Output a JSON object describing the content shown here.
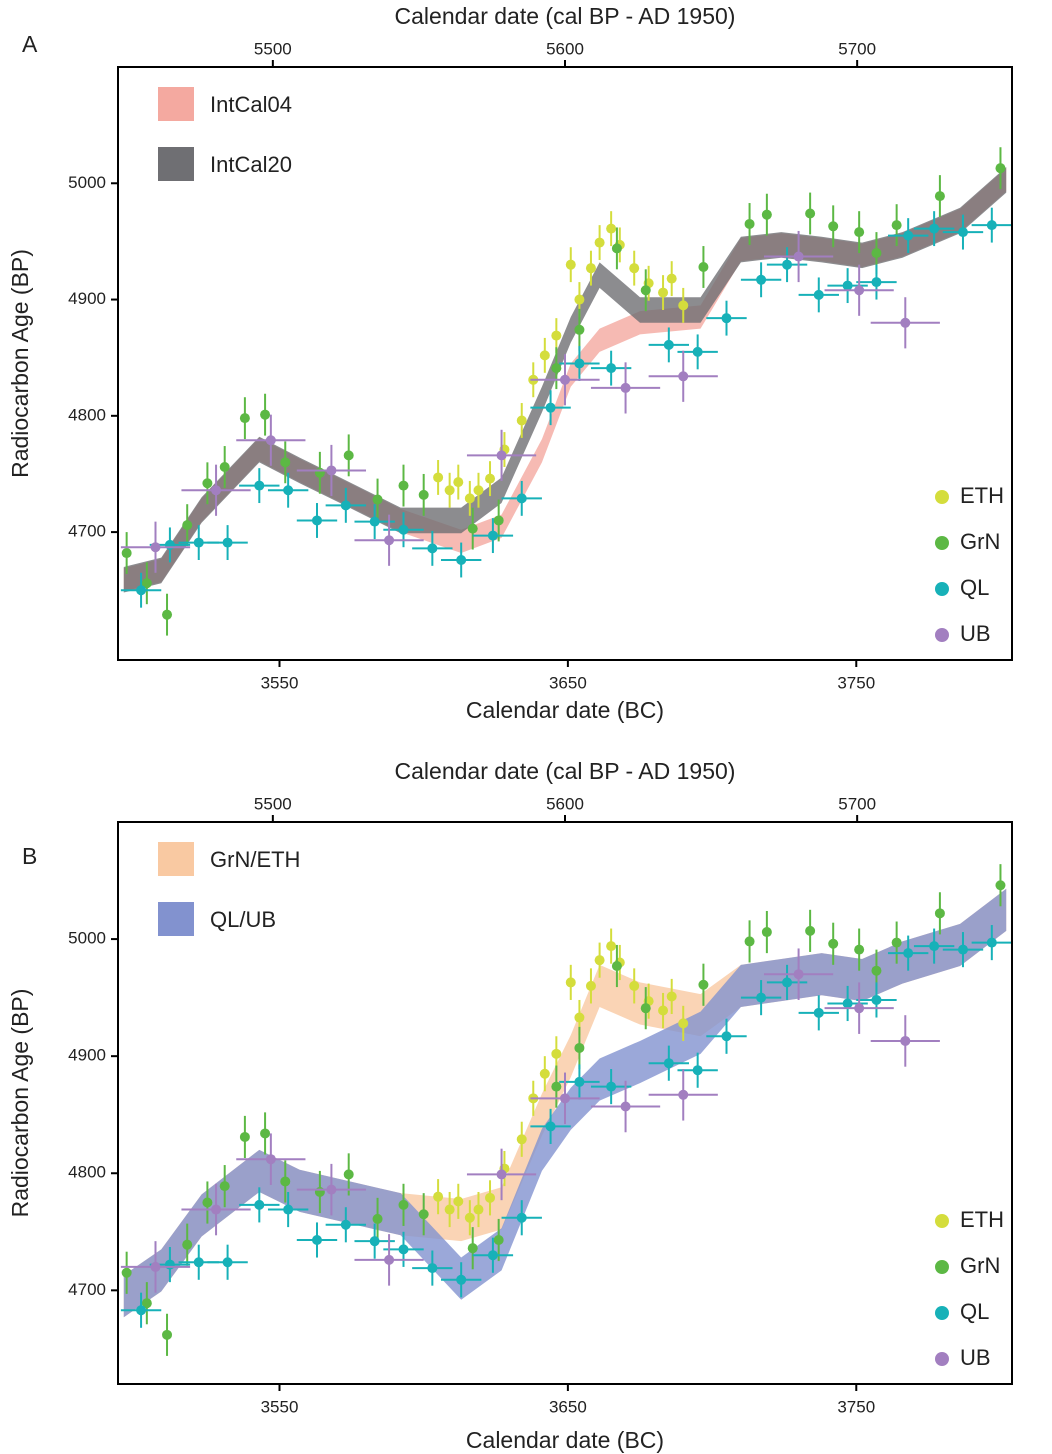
{
  "chart_data": [
    {
      "type": "scatter",
      "panel_label": "A",
      "x2label": "Calendar date (cal BP - AD 1950)",
      "xlabel": "Calendar date (BC)",
      "ylabel": "Radiocarbon Age (BP)",
      "xlim": [
        3494,
        3804
      ],
      "xticks": [
        3550,
        3650,
        3750
      ],
      "x2lim": [
        5447,
        5753
      ],
      "x2ticks": [
        5500,
        5600,
        5700
      ],
      "ylim": [
        4590,
        5100
      ],
      "yticks": [
        4700,
        4800,
        4900,
        5000
      ],
      "band_legend": "upper left",
      "legend": "lower right",
      "bands": [
        {
          "name": "IntCal04",
          "color": "#f4a9a0",
          "x": [
            3496,
            3509,
            3523,
            3543,
            3557,
            3571,
            3592,
            3613,
            3627,
            3641,
            3651,
            3661,
            3675,
            3696,
            3710,
            3724,
            3738,
            3752,
            3766,
            3786,
            3802
          ],
          "low": [
            4649,
            4657,
            4709,
            4761,
            4743,
            4726,
            4700,
            4682,
            4695,
            4760,
            4825,
            4855,
            4870,
            4875,
            4933,
            4937,
            4933,
            4928,
            4937,
            4958,
            4993
          ],
          "high": [
            4669,
            4677,
            4729,
            4781,
            4763,
            4746,
            4720,
            4702,
            4715,
            4780,
            4845,
            4875,
            4890,
            4895,
            4953,
            4957,
            4953,
            4948,
            4957,
            4978,
            5013
          ]
        },
        {
          "name": "IntCal20",
          "color": "#6f6f73",
          "x": [
            3496,
            3509,
            3523,
            3543,
            3557,
            3571,
            3592,
            3613,
            3627,
            3641,
            3651,
            3661,
            3675,
            3696,
            3710,
            3724,
            3738,
            3752,
            3766,
            3786,
            3802
          ],
          "low": [
            4648,
            4656,
            4708,
            4760,
            4742,
            4725,
            4699,
            4699,
            4725,
            4803,
            4863,
            4910,
            4880,
            4880,
            4932,
            4936,
            4932,
            4927,
            4936,
            4957,
            4992
          ],
          "high": [
            4670,
            4678,
            4730,
            4782,
            4764,
            4747,
            4721,
            4721,
            4747,
            4825,
            4885,
            4932,
            4902,
            4902,
            4954,
            4958,
            4954,
            4949,
            4958,
            4979,
            5014
          ]
        }
      ],
      "series": [
        {
          "name": "ETH",
          "color": "#d4dd3c",
          "yerr": 15,
          "x": [
            3605,
            3609,
            3612,
            3616,
            3619,
            3623,
            3628,
            3634,
            3638,
            3642,
            3646,
            3651,
            3654,
            3658,
            3661,
            3665,
            3668,
            3673,
            3678,
            3683,
            3686,
            3690
          ],
          "values": [
            4747,
            4736,
            4743,
            4729,
            4736,
            4746,
            4771,
            4796,
            4831,
            4852,
            4869,
            4930,
            4900,
            4927,
            4949,
            4961,
            4947,
            4927,
            4914,
            4906,
            4918,
            4895
          ]
        },
        {
          "name": "GrN",
          "color": "#5cb844",
          "yerr": 18,
          "x": [
            3497,
            3504,
            3511,
            3518,
            3525,
            3531,
            3538,
            3545,
            3552,
            3564,
            3574,
            3584,
            3593,
            3600,
            3617,
            3626,
            3646,
            3654,
            3667,
            3677,
            3697,
            3713,
            3719,
            3734,
            3742,
            3751,
            3757,
            3764,
            3779,
            3800
          ],
          "values": [
            4682,
            4656,
            4629,
            4706,
            4742,
            4756,
            4798,
            4801,
            4760,
            4751,
            4766,
            4728,
            4740,
            4732,
            4703,
            4710,
            4841,
            4874,
            4944,
            4908,
            4928,
            4965,
            4973,
            4974,
            4963,
            4958,
            4940,
            4964,
            4989,
            5013
          ]
        },
        {
          "name": "QL",
          "color": "#17b1b8",
          "xerr": 7,
          "yerr": 15,
          "x": [
            3502,
            3512,
            3522,
            3532,
            3543,
            3553,
            3563,
            3573,
            3583,
            3593,
            3603,
            3613,
            3624,
            3634,
            3644,
            3654,
            3665,
            3685,
            3695,
            3705,
            3717,
            3726,
            3737,
            3747,
            3757,
            3768,
            3777,
            3787,
            3797
          ],
          "values": [
            4650,
            4689,
            4691,
            4691,
            4740,
            4736,
            4710,
            4723,
            4709,
            4702,
            4686,
            4676,
            4697,
            4729,
            4807,
            4845,
            4841,
            4861,
            4855,
            4884,
            4917,
            4930,
            4904,
            4912,
            4915,
            4955,
            4961,
            4958,
            4964
          ]
        },
        {
          "name": "UB",
          "color": "#a27fc0",
          "xerr": 12,
          "yerr": 22,
          "x": [
            3507,
            3528,
            3547,
            3568,
            3588,
            3627,
            3649,
            3670,
            3690,
            3730,
            3751,
            3767
          ],
          "values": [
            4687,
            4736,
            4779,
            4753,
            4693,
            4766,
            4831,
            4824,
            4834,
            4937,
            4908,
            4880
          ]
        }
      ]
    },
    {
      "type": "scatter",
      "panel_label": "B",
      "x2label": "Calendar date (cal BP - AD 1950)",
      "xlabel": "Calendar date (BC)",
      "ylabel": "Radiocarbon Age (BP)",
      "xlim": [
        3494,
        3804
      ],
      "xticks": [
        3550,
        3650,
        3750
      ],
      "x2lim": [
        5447,
        5753
      ],
      "x2ticks": [
        5500,
        5600,
        5700
      ],
      "ylim": [
        4620,
        5100
      ],
      "yticks": [
        4700,
        4800,
        4900,
        5000
      ],
      "band_legend": "upper left",
      "legend": "lower right",
      "bands": [
        {
          "name": "GrN/ETH",
          "color": "#f9c9a2",
          "x": [
            3496,
            3509,
            3523,
            3543,
            3557,
            3571,
            3592,
            3613,
            3627,
            3641,
            3651,
            3661,
            3675,
            3696,
            3710,
            3724,
            3738,
            3752,
            3766,
            3786,
            3802
          ],
          "low": [
            4677,
            4699,
            4746,
            4784,
            4767,
            4759,
            4747,
            4742,
            4752,
            4832,
            4882,
            4942,
            4927,
            4917,
            4942,
            4947,
            4952,
            4947,
            4962,
            4977,
            5007
          ],
          "high": [
            4713,
            4735,
            4782,
            4820,
            4803,
            4795,
            4783,
            4778,
            4788,
            4868,
            4918,
            4978,
            4963,
            4953,
            4978,
            4983,
            4988,
            4983,
            4998,
            5013,
            5043
          ]
        },
        {
          "name": "QL/UB",
          "color": "#8292cf",
          "x": [
            3496,
            3509,
            3523,
            3543,
            3557,
            3571,
            3592,
            3613,
            3627,
            3641,
            3651,
            3661,
            3675,
            3696,
            3710,
            3724,
            3738,
            3752,
            3766,
            3786,
            3802
          ],
          "low": [
            4677,
            4699,
            4746,
            4784,
            4767,
            4759,
            4747,
            4692,
            4717,
            4802,
            4837,
            4862,
            4877,
            4902,
            4942,
            4947,
            4952,
            4947,
            4962,
            4977,
            5007
          ],
          "high": [
            4713,
            4735,
            4782,
            4820,
            4803,
            4795,
            4783,
            4728,
            4753,
            4838,
            4873,
            4898,
            4913,
            4938,
            4978,
            4983,
            4988,
            4983,
            4998,
            5013,
            5043
          ]
        }
      ],
      "series": [
        {
          "name": "ETH",
          "color": "#d4dd3c",
          "yerr": 15,
          "x": [
            3605,
            3609,
            3612,
            3616,
            3619,
            3623,
            3628,
            3634,
            3638,
            3642,
            3646,
            3651,
            3654,
            3658,
            3661,
            3665,
            3668,
            3673,
            3678,
            3683,
            3686,
            3690
          ],
          "values": [
            4780,
            4769,
            4776,
            4762,
            4769,
            4779,
            4804,
            4829,
            4864,
            4885,
            4902,
            4963,
            4933,
            4960,
            4982,
            4994,
            4980,
            4960,
            4947,
            4939,
            4951,
            4928
          ]
        },
        {
          "name": "GrN",
          "color": "#5cb844",
          "yerr": 18,
          "x": [
            3497,
            3504,
            3511,
            3518,
            3525,
            3531,
            3538,
            3545,
            3552,
            3564,
            3574,
            3584,
            3593,
            3600,
            3617,
            3626,
            3646,
            3654,
            3667,
            3677,
            3697,
            3713,
            3719,
            3734,
            3742,
            3751,
            3757,
            3764,
            3779,
            3800
          ],
          "values": [
            4715,
            4689,
            4662,
            4739,
            4775,
            4789,
            4831,
            4834,
            4793,
            4784,
            4799,
            4761,
            4773,
            4765,
            4736,
            4743,
            4874,
            4907,
            4977,
            4941,
            4961,
            4998,
            5006,
            5007,
            4996,
            4991,
            4973,
            4997,
            5022,
            5046
          ]
        },
        {
          "name": "QL",
          "color": "#17b1b8",
          "xerr": 7,
          "yerr": 15,
          "x": [
            3502,
            3512,
            3522,
            3532,
            3543,
            3553,
            3563,
            3573,
            3583,
            3593,
            3603,
            3613,
            3624,
            3634,
            3644,
            3654,
            3665,
            3685,
            3695,
            3705,
            3717,
            3726,
            3737,
            3747,
            3757,
            3768,
            3777,
            3787,
            3797
          ],
          "values": [
            4683,
            4722,
            4724,
            4724,
            4773,
            4769,
            4743,
            4756,
            4742,
            4735,
            4719,
            4709,
            4730,
            4762,
            4840,
            4878,
            4874,
            4894,
            4888,
            4917,
            4950,
            4963,
            4937,
            4945,
            4948,
            4988,
            4994,
            4991,
            4997
          ]
        },
        {
          "name": "UB",
          "color": "#a27fc0",
          "xerr": 12,
          "yerr": 22,
          "x": [
            3507,
            3528,
            3547,
            3568,
            3588,
            3627,
            3649,
            3670,
            3690,
            3730,
            3751,
            3767
          ],
          "values": [
            4720,
            4769,
            4812,
            4786,
            4726,
            4799,
            4864,
            4857,
            4867,
            4970,
            4941,
            4913
          ]
        }
      ]
    }
  ]
}
